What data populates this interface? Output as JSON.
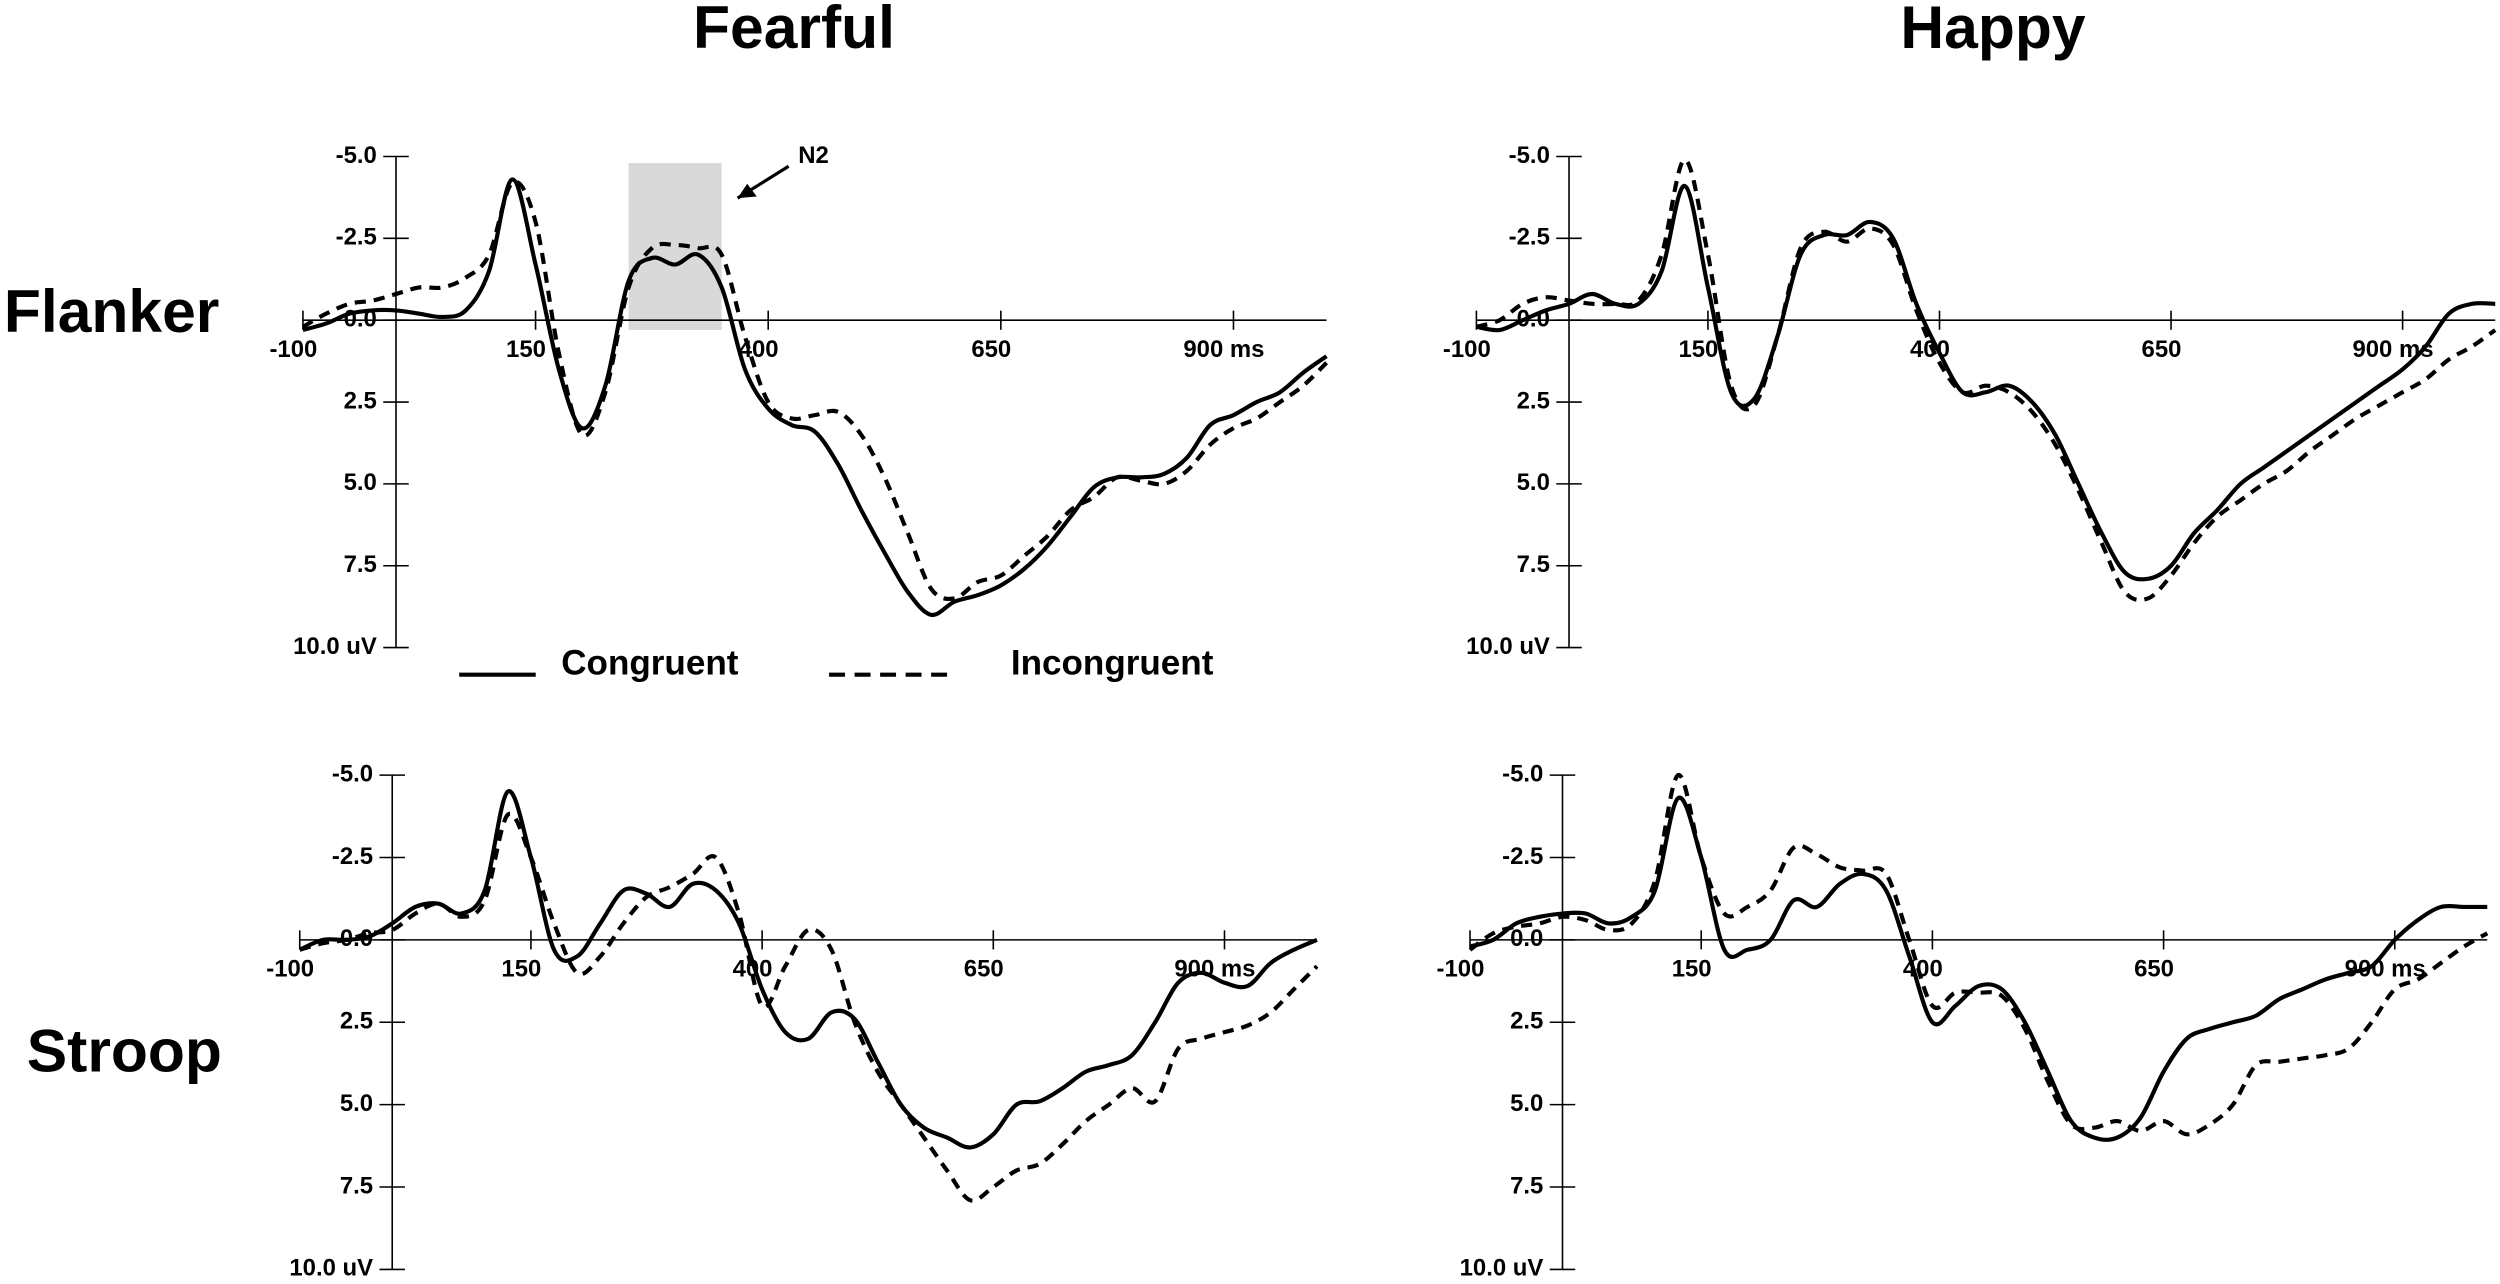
{
  "columns": [
    "Fearful",
    "Happy"
  ],
  "rows": [
    "Flanker",
    "Stroop"
  ],
  "chart_data": [
    {
      "type": "line",
      "x": [
        -100,
        -75,
        -50,
        -25,
        0,
        25,
        50,
        75,
        100,
        125,
        150,
        175,
        200,
        225,
        250,
        275,
        300,
        325,
        350,
        375,
        400,
        425,
        450,
        475,
        500,
        525,
        550,
        575,
        600,
        625,
        650,
        675,
        700,
        725,
        750,
        775,
        800,
        825,
        850,
        875,
        900,
        925,
        950,
        975,
        1000
      ],
      "xlim": [
        -100,
        1000
      ],
      "ylim": [
        -5,
        10
      ],
      "y_inverted": true,
      "xticks": [
        -100,
        150,
        400,
        650,
        {
          "value": 900,
          "label": "900 ms"
        }
      ],
      "yticks": [
        {
          "value": -5,
          "label": "-5.0"
        },
        {
          "value": -2.5,
          "label": "-2.5"
        },
        {
          "value": 0,
          "label": "0.0"
        },
        {
          "value": 2.5,
          "label": "2.5"
        },
        {
          "value": 5,
          "label": "5.0"
        },
        {
          "value": 7.5,
          "label": "7.5"
        },
        {
          "value": 10,
          "label": "10.0 uV"
        }
      ],
      "legend": true,
      "highlight": {
        "xlim": [
          250,
          350
        ],
        "ylim": [
          -4.8,
          0.3
        ],
        "color": "#d9d9d9"
      },
      "annotation": "N2",
      "series": [
        {
          "name": "Congruent",
          "color": "#000000",
          "dash": false,
          "values": [
            0.3,
            0.1,
            -0.2,
            -0.3,
            -0.3,
            -0.2,
            -0.1,
            -0.3,
            -1.5,
            -4.3,
            -1.7,
            1.5,
            3.3,
            2.0,
            -1.2,
            -1.9,
            -1.7,
            -2.0,
            -1.0,
            1.5,
            2.7,
            3.2,
            3.4,
            4.4,
            5.8,
            7.1,
            8.3,
            9.0,
            8.6,
            8.4,
            8.1,
            7.6,
            6.9,
            6.0,
            5.1,
            4.8,
            4.8,
            4.7,
            4.2,
            3.2,
            2.9,
            2.5,
            2.2,
            1.6,
            1.1
          ]
        },
        {
          "name": "Incongruent",
          "color": "#000000",
          "dash": true,
          "values": [
            0.2,
            -0.2,
            -0.5,
            -0.6,
            -0.8,
            -1.0,
            -1.0,
            -1.3,
            -2.0,
            -4.2,
            -3.0,
            1.0,
            3.5,
            2.2,
            -1.0,
            -2.2,
            -2.3,
            -2.2,
            -2.0,
            0.5,
            2.5,
            3.0,
            2.9,
            2.8,
            3.5,
            4.8,
            6.5,
            8.2,
            8.5,
            8.0,
            7.8,
            7.2,
            6.6,
            5.8,
            5.4,
            4.8,
            4.9,
            5.0,
            4.6,
            3.8,
            3.3,
            3.0,
            2.5,
            2.0,
            1.3
          ]
        }
      ]
    },
    {
      "type": "line",
      "x": [
        -100,
        -75,
        -50,
        -25,
        0,
        25,
        50,
        75,
        100,
        125,
        150,
        175,
        200,
        225,
        250,
        275,
        300,
        325,
        350,
        375,
        400,
        425,
        450,
        475,
        500,
        525,
        550,
        575,
        600,
        625,
        650,
        675,
        700,
        725,
        750,
        775,
        800,
        825,
        850,
        875,
        900,
        925,
        950,
        975,
        1000
      ],
      "xlim": [
        -100,
        1000
      ],
      "ylim": [
        -5,
        10
      ],
      "y_inverted": true,
      "xticks": [
        -100,
        150,
        400,
        650,
        {
          "value": 900,
          "label": "900 ms"
        }
      ],
      "yticks": [
        {
          "value": -5,
          "label": "-5.0"
        },
        {
          "value": -2.5,
          "label": "-2.5"
        },
        {
          "value": 0,
          "label": "0.0"
        },
        {
          "value": 2.5,
          "label": "2.5"
        },
        {
          "value": 5,
          "label": "5.0"
        },
        {
          "value": 7.5,
          "label": "7.5"
        },
        {
          "value": 10,
          "label": "10.0 uV"
        }
      ],
      "series": [
        {
          "color": "#000000",
          "dash": false,
          "values": [
            0.2,
            0.3,
            0.0,
            -0.3,
            -0.5,
            -0.8,
            -0.5,
            -0.5,
            -1.5,
            -4.1,
            -1.0,
            2.2,
            2.4,
            0.5,
            -2.0,
            -2.6,
            -2.6,
            -3.0,
            -2.5,
            -0.5,
            1.0,
            2.2,
            2.2,
            2.0,
            2.5,
            3.5,
            5.0,
            6.5,
            7.7,
            7.9,
            7.5,
            6.5,
            5.8,
            5.0,
            4.5,
            4.0,
            3.5,
            3.0,
            2.5,
            2.0,
            1.5,
            0.8,
            -0.2,
            -0.5,
            -0.5
          ]
        },
        {
          "color": "#000000",
          "dash": true,
          "values": [
            0.2,
            0.0,
            -0.5,
            -0.7,
            -0.6,
            -0.5,
            -0.5,
            -0.6,
            -2.0,
            -4.9,
            -2.0,
            2.0,
            2.6,
            0.5,
            -2.2,
            -2.7,
            -2.4,
            -2.8,
            -2.3,
            -0.3,
            1.3,
            2.2,
            2.0,
            2.2,
            2.8,
            3.8,
            5.2,
            6.8,
            8.3,
            8.5,
            7.8,
            6.8,
            6.0,
            5.5,
            5.0,
            4.6,
            4.0,
            3.5,
            3.0,
            2.6,
            2.2,
            1.8,
            1.2,
            0.8,
            0.3
          ]
        }
      ]
    },
    {
      "type": "line",
      "x": [
        -100,
        -75,
        -50,
        -25,
        0,
        25,
        50,
        75,
        100,
        125,
        150,
        175,
        200,
        225,
        250,
        275,
        300,
        325,
        350,
        375,
        400,
        425,
        450,
        475,
        500,
        525,
        550,
        575,
        600,
        625,
        650,
        675,
        700,
        725,
        750,
        775,
        800,
        825,
        850,
        875,
        900,
        925,
        950,
        975,
        1000
      ],
      "xlim": [
        -100,
        1000
      ],
      "ylim": [
        -5,
        10
      ],
      "y_inverted": true,
      "xticks": [
        -100,
        150,
        400,
        650,
        {
          "value": 900,
          "label": "900 ms"
        }
      ],
      "yticks": [
        {
          "value": -5,
          "label": "-5.0"
        },
        {
          "value": -2.5,
          "label": "-2.5"
        },
        {
          "value": 0,
          "label": "0.0"
        },
        {
          "value": 2.5,
          "label": "2.5"
        },
        {
          "value": 5,
          "label": "5.0"
        },
        {
          "value": 7.5,
          "label": "7.5"
        },
        {
          "value": 10,
          "label": "10.0 uV"
        }
      ],
      "series": [
        {
          "color": "#000000",
          "dash": false,
          "values": [
            0.3,
            0.0,
            0.0,
            -0.1,
            -0.5,
            -1.0,
            -1.1,
            -0.8,
            -1.5,
            -4.5,
            -2.5,
            0.3,
            0.5,
            -0.5,
            -1.5,
            -1.4,
            -1.0,
            -1.7,
            -1.5,
            -0.5,
            1.5,
            2.8,
            3.0,
            2.2,
            2.4,
            3.7,
            5.0,
            5.7,
            6.0,
            6.3,
            5.9,
            5.0,
            4.9,
            4.5,
            4.0,
            3.8,
            3.5,
            2.5,
            1.3,
            1.0,
            1.3,
            1.4,
            0.7,
            0.3,
            0.0
          ]
        },
        {
          "color": "#000000",
          "dash": true,
          "values": [
            0.3,
            0.1,
            0.0,
            -0.2,
            -0.3,
            -0.8,
            -1.1,
            -0.7,
            -1.2,
            -3.8,
            -2.5,
            -0.5,
            1.0,
            0.5,
            -0.5,
            -1.3,
            -1.6,
            -2.0,
            -2.5,
            -0.8,
            2.0,
            0.8,
            -0.3,
            0.3,
            2.5,
            4.0,
            5.0,
            6.0,
            7.0,
            7.9,
            7.5,
            7.0,
            6.8,
            6.2,
            5.5,
            5.0,
            4.5,
            4.9,
            3.3,
            3.0,
            2.8,
            2.6,
            2.2,
            1.5,
            0.8
          ]
        }
      ]
    },
    {
      "type": "line",
      "x": [
        -100,
        -75,
        -50,
        -25,
        0,
        25,
        50,
        75,
        100,
        125,
        150,
        175,
        200,
        225,
        250,
        275,
        300,
        325,
        350,
        375,
        400,
        425,
        450,
        475,
        500,
        525,
        550,
        575,
        600,
        625,
        650,
        675,
        700,
        725,
        750,
        775,
        800,
        825,
        850,
        875,
        900,
        925,
        950,
        975,
        1000
      ],
      "xlim": [
        -100,
        1000
      ],
      "ylim": [
        -5,
        10
      ],
      "y_inverted": true,
      "xticks": [
        -100,
        150,
        400,
        650,
        {
          "value": 900,
          "label": "900 ms"
        }
      ],
      "yticks": [
        {
          "value": -5,
          "label": "-5.0"
        },
        {
          "value": -2.5,
          "label": "-2.5"
        },
        {
          "value": 0,
          "label": "0.0"
        },
        {
          "value": 2.5,
          "label": "2.5"
        },
        {
          "value": 5,
          "label": "5.0"
        },
        {
          "value": 7.5,
          "label": "7.5"
        },
        {
          "value": 10,
          "label": "10.0 uV"
        }
      ],
      "series": [
        {
          "color": "#000000",
          "dash": false,
          "values": [
            0.2,
            0.0,
            -0.5,
            -0.7,
            -0.8,
            -0.8,
            -0.5,
            -0.7,
            -1.5,
            -4.3,
            -2.5,
            0.3,
            0.3,
            0.0,
            -1.2,
            -1.0,
            -1.7,
            -2.0,
            -1.5,
            0.5,
            2.5,
            2.0,
            1.4,
            1.5,
            2.5,
            4.0,
            5.5,
            6.0,
            6.0,
            5.4,
            4.0,
            3.0,
            2.7,
            2.5,
            2.3,
            1.8,
            1.5,
            1.2,
            1.0,
            0.8,
            0.0,
            -0.6,
            -1.0,
            -1.0,
            -1.0
          ]
        },
        {
          "color": "#000000",
          "dash": true,
          "values": [
            0.3,
            -0.2,
            -0.4,
            -0.5,
            -0.7,
            -0.6,
            -0.3,
            -0.5,
            -1.8,
            -5.0,
            -2.5,
            -0.8,
            -1.0,
            -1.5,
            -2.8,
            -2.6,
            -2.2,
            -2.1,
            -2.0,
            0.0,
            2.0,
            1.6,
            1.6,
            1.7,
            2.7,
            4.3,
            5.6,
            5.7,
            5.5,
            5.8,
            5.5,
            5.9,
            5.6,
            5.0,
            3.8,
            3.7,
            3.6,
            3.5,
            3.3,
            2.5,
            1.5,
            1.2,
            0.7,
            0.2,
            -0.2
          ]
        }
      ]
    }
  ]
}
